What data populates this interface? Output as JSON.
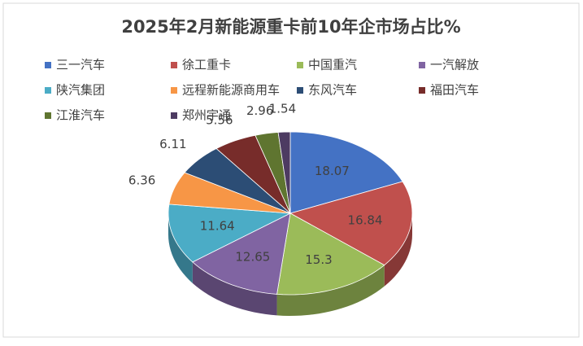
{
  "chart_data": {
    "type": "pie3d",
    "title": "2025年2月新能源重卡前10年企市场占比%",
    "categories": [
      "三一汽车",
      "徐工重卡",
      "中国重汽",
      "一汽解放",
      "陕汽集团",
      "远程新能源商用车",
      "东风汽车",
      "福田汽车",
      "江淮汽车",
      "郑州宇通"
    ],
    "values": [
      18.07,
      16.84,
      15.3,
      12.65,
      11.64,
      6.36,
      6.11,
      5.56,
      2.96,
      1.54
    ],
    "colors": [
      "#4472C4",
      "#C0504D",
      "#9BBB59",
      "#8064A2",
      "#4BACC6",
      "#F79646",
      "#2C4D75",
      "#772C2A",
      "#5F7530",
      "#4D3B62"
    ],
    "legend": "top"
  }
}
